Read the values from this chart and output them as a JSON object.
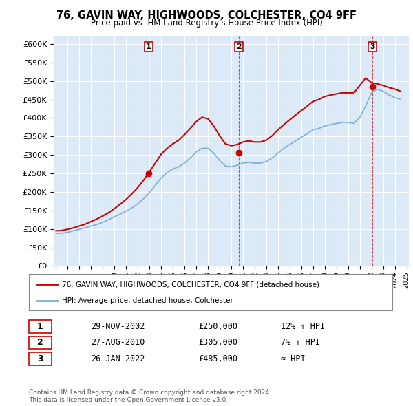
{
  "title": "76, GAVIN WAY, HIGHWOODS, COLCHESTER, CO4 9FF",
  "subtitle": "Price paid vs. HM Land Registry's House Price Index (HPI)",
  "ylim": [
    0,
    620000
  ],
  "yticks": [
    0,
    50000,
    100000,
    150000,
    200000,
    250000,
    300000,
    350000,
    400000,
    450000,
    500000,
    550000,
    600000
  ],
  "bg_color": "#dce9f7",
  "plot_bg_color": "#dce9f7",
  "red_color": "#cc0000",
  "blue_color": "#7ab0d4",
  "sale_dates": [
    "2002-11-29",
    "2010-08-27",
    "2022-01-26"
  ],
  "sale_prices": [
    250000,
    305000,
    485000
  ],
  "sale_labels": [
    "1",
    "2",
    "3"
  ],
  "sale_info": [
    {
      "label": "1",
      "date": "29-NOV-2002",
      "price": "£250,000",
      "hpi": "12% ↑ HPI"
    },
    {
      "label": "2",
      "date": "27-AUG-2010",
      "price": "£305,000",
      "hpi": "7% ↑ HPI"
    },
    {
      "label": "3",
      "date": "26-JAN-2022",
      "price": "£485,000",
      "hpi": "≈ HPI"
    }
  ],
  "legend_entries": [
    {
      "label": "76, GAVIN WAY, HIGHWOODS, COLCHESTER, CO4 9FF (detached house)",
      "color": "#cc0000"
    },
    {
      "label": "HPI: Average price, detached house, Colchester",
      "color": "#7ab0d4"
    }
  ],
  "footnote": "Contains HM Land Registry data © Crown copyright and database right 2024.\nThis data is licensed under the Open Government Licence v3.0.",
  "hpi_x": [
    1995.0,
    1995.5,
    1996.0,
    1996.5,
    1997.0,
    1997.5,
    1998.0,
    1998.5,
    1999.0,
    1999.5,
    2000.0,
    2000.5,
    2001.0,
    2001.5,
    2002.0,
    2002.5,
    2003.0,
    2003.5,
    2004.0,
    2004.5,
    2005.0,
    2005.5,
    2006.0,
    2006.5,
    2007.0,
    2007.5,
    2008.0,
    2008.5,
    2009.0,
    2009.5,
    2010.0,
    2010.5,
    2011.0,
    2011.5,
    2012.0,
    2012.5,
    2013.0,
    2013.5,
    2014.0,
    2014.5,
    2015.0,
    2015.5,
    2016.0,
    2016.5,
    2017.0,
    2017.5,
    2018.0,
    2018.5,
    2019.0,
    2019.5,
    2020.0,
    2020.5,
    2021.0,
    2021.5,
    2022.0,
    2022.5,
    2023.0,
    2023.5,
    2024.0,
    2024.5
  ],
  "hpi_y": [
    88000,
    88500,
    91000,
    95000,
    99000,
    103000,
    108000,
    112000,
    118000,
    125000,
    133000,
    140000,
    148000,
    157000,
    168000,
    182000,
    198000,
    218000,
    238000,
    252000,
    262000,
    268000,
    278000,
    292000,
    308000,
    318000,
    318000,
    305000,
    285000,
    270000,
    268000,
    272000,
    278000,
    280000,
    278000,
    278000,
    282000,
    292000,
    305000,
    318000,
    328000,
    338000,
    348000,
    358000,
    368000,
    372000,
    378000,
    382000,
    385000,
    388000,
    388000,
    385000,
    402000,
    432000,
    468000,
    478000,
    472000,
    462000,
    455000,
    450000
  ],
  "price_x": [
    1995.0,
    1995.5,
    1996.0,
    1996.5,
    1997.0,
    1997.5,
    1998.0,
    1998.5,
    1999.0,
    1999.5,
    2000.0,
    2000.5,
    2001.0,
    2001.5,
    2002.0,
    2002.5,
    2003.0,
    2003.5,
    2004.0,
    2004.5,
    2005.0,
    2005.5,
    2006.0,
    2006.5,
    2007.0,
    2007.5,
    2008.0,
    2008.5,
    2009.0,
    2009.5,
    2010.0,
    2010.5,
    2011.0,
    2011.5,
    2012.0,
    2012.5,
    2013.0,
    2013.5,
    2014.0,
    2014.5,
    2015.0,
    2015.5,
    2016.0,
    2016.5,
    2017.0,
    2017.5,
    2018.0,
    2018.5,
    2019.0,
    2019.5,
    2020.0,
    2020.5,
    2021.0,
    2021.5,
    2022.0,
    2022.5,
    2023.0,
    2023.5,
    2024.0,
    2024.5
  ],
  "price_y": [
    95000,
    96000,
    99000,
    103000,
    108000,
    113000,
    120000,
    127000,
    135000,
    144000,
    155000,
    167000,
    180000,
    195000,
    212000,
    232000,
    255000,
    278000,
    302000,
    318000,
    330000,
    340000,
    355000,
    372000,
    390000,
    402000,
    398000,
    378000,
    352000,
    330000,
    325000,
    328000,
    335000,
    338000,
    335000,
    335000,
    340000,
    352000,
    368000,
    382000,
    395000,
    408000,
    420000,
    432000,
    445000,
    450000,
    458000,
    462000,
    465000,
    468000,
    468000,
    468000,
    488000,
    508000,
    495000,
    492000,
    488000,
    482000,
    478000,
    472000
  ]
}
